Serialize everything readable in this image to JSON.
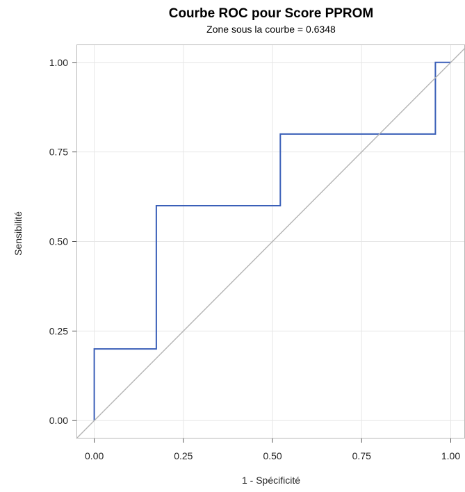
{
  "chart_data": {
    "type": "line",
    "title": "Courbe ROC pour Score PPROM",
    "subtitle": "Zone sous la courbe = 0.6348",
    "xlabel": "1 - Spécificité",
    "ylabel": "Sensibilité",
    "xlim": [
      -0.05,
      1.04
    ],
    "ylim": [
      -0.05,
      1.05
    ],
    "x_ticks": [
      0,
      0.25,
      0.5,
      0.75,
      1
    ],
    "x_tick_labels": [
      "0.00",
      "0.25",
      "0.50",
      "0.75",
      "1.00"
    ],
    "y_ticks": [
      0,
      0.25,
      0.5,
      0.75,
      1
    ],
    "y_tick_labels": [
      "0.00",
      "0.25",
      "0.50",
      "0.75",
      "1.00"
    ],
    "grid": true,
    "series": [
      {
        "x": [
          0,
          0,
          0.174,
          0.174,
          0.522,
          0.522,
          0.957,
          0.957,
          1.0
        ],
        "y": [
          0,
          0.2,
          0.2,
          0.6,
          0.6,
          0.8,
          0.8,
          1.0,
          1.0
        ],
        "color": "#3a5fb8",
        "step": true
      },
      {
        "x": [
          -0.05,
          1.04
        ],
        "y": [
          -0.05,
          1.04
        ],
        "color": "#b4b4b4"
      }
    ]
  }
}
